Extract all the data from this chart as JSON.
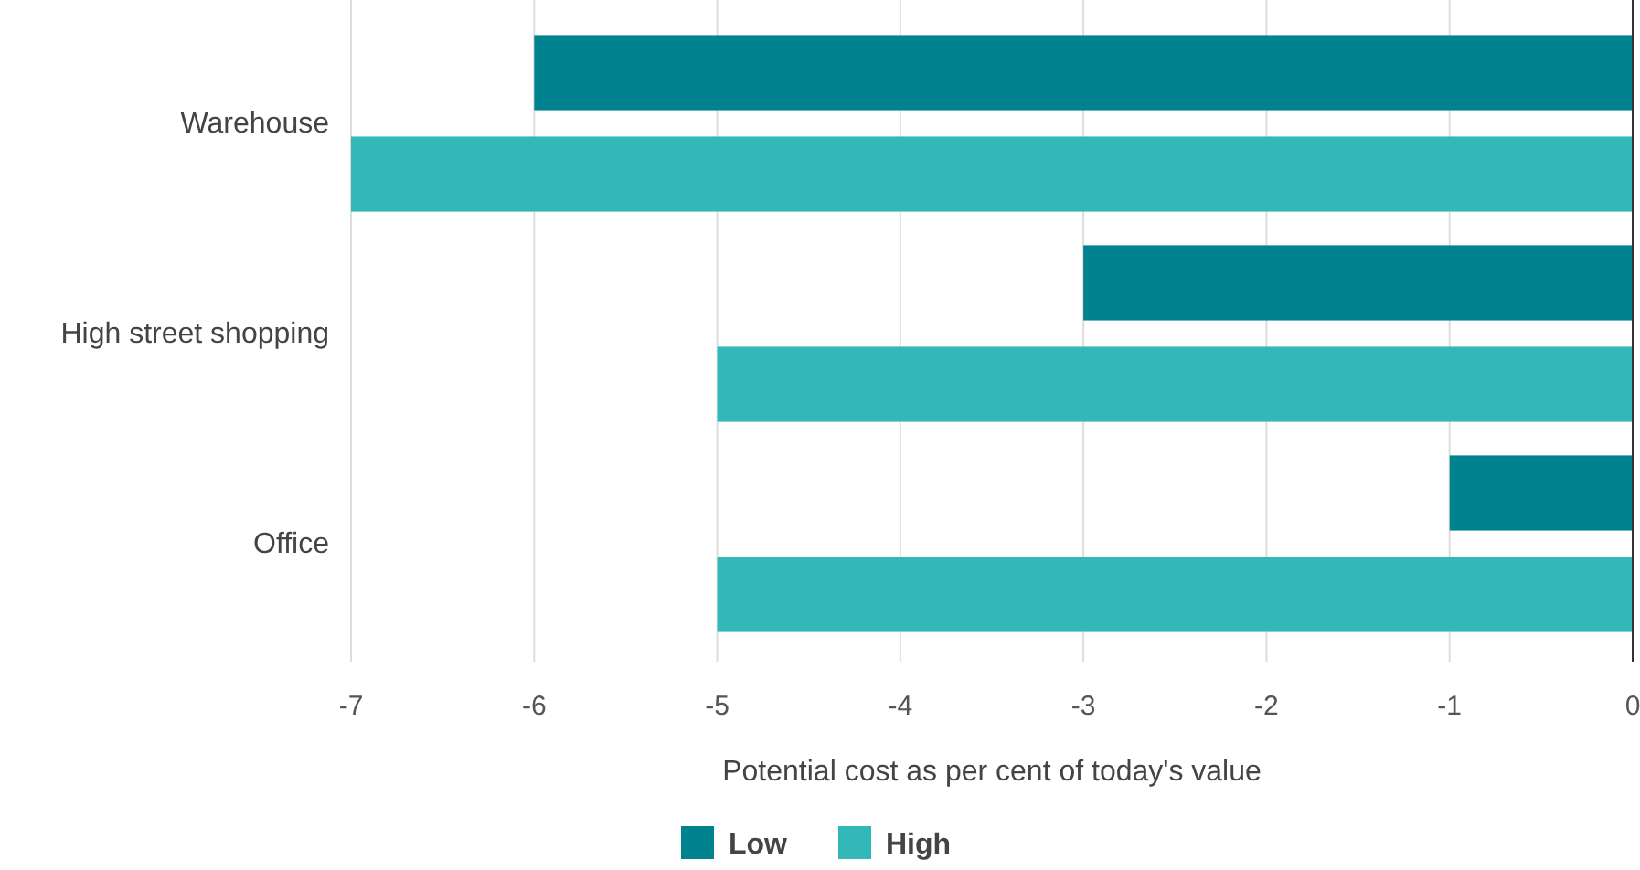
{
  "chart_data": {
    "type": "bar",
    "orientation": "horizontal",
    "xlabel": "Potential cost as per cent of today's value",
    "categories": [
      "Warehouse",
      "High street shopping",
      "Office"
    ],
    "series": [
      {
        "name": "Low",
        "color": "#00838f",
        "values": [
          -6,
          -3,
          -1
        ]
      },
      {
        "name": "High",
        "color": "#33b8b8",
        "values": [
          -7,
          -5,
          -5
        ]
      }
    ],
    "xlim": [
      -7,
      0
    ],
    "xticks": [
      -7,
      -6,
      -5,
      -4,
      -3,
      -2,
      -1,
      0
    ],
    "grid": "x",
    "legend": "bottom"
  }
}
